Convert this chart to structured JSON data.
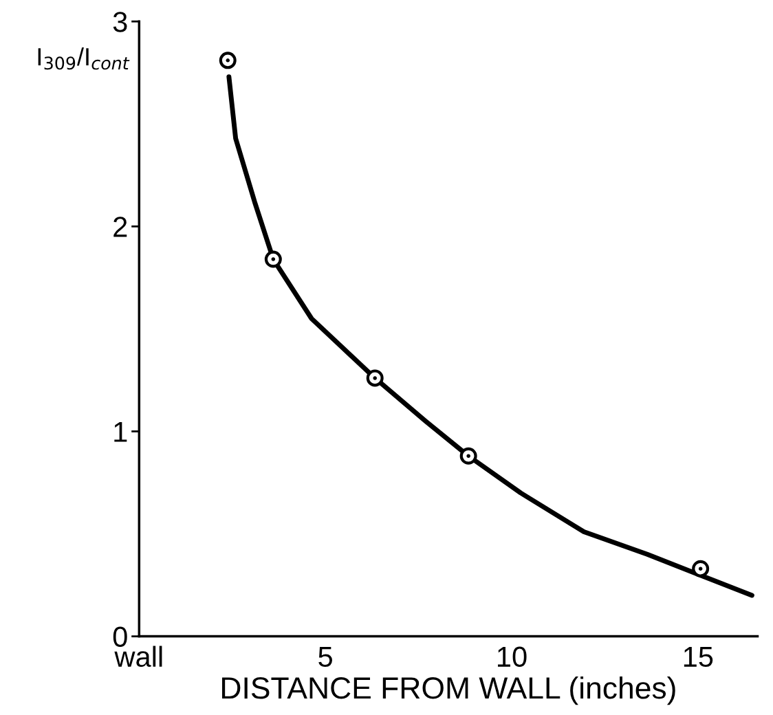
{
  "chart_data": {
    "type": "scatter",
    "xlabel": "DISTANCE FROM WALL (inches)",
    "ylabel": "I$_{309}$/I$_{cont}$",
    "xlim": [
      0,
      16.6
    ],
    "ylim": [
      0,
      3
    ],
    "xticks": [
      {
        "value": 0,
        "label": "wall"
      },
      5,
      10,
      15
    ],
    "yticks": [
      0,
      1,
      2,
      3
    ],
    "marker": "circle",
    "grid": false,
    "legend": false,
    "series": [
      {
        "color": "#000000",
        "x": [
          2.38,
          3.6,
          6.33,
          8.84,
          15.07
        ],
        "values": [
          2.81,
          1.84,
          1.26,
          0.88,
          0.33
        ]
      },
      {
        "type": "line",
        "color": "#000000",
        "marker": "none",
        "line_style": "solid",
        "x": [
          2.41,
          2.59,
          3.1,
          3.6,
          4.63,
          6.33,
          7.69,
          8.84,
          10.24,
          11.94,
          13.64,
          16.45
        ],
        "values": [
          2.73,
          2.43,
          2.12,
          1.84,
          1.55,
          1.26,
          1.05,
          0.88,
          0.7,
          0.51,
          0.4,
          0.2
        ]
      }
    ]
  }
}
